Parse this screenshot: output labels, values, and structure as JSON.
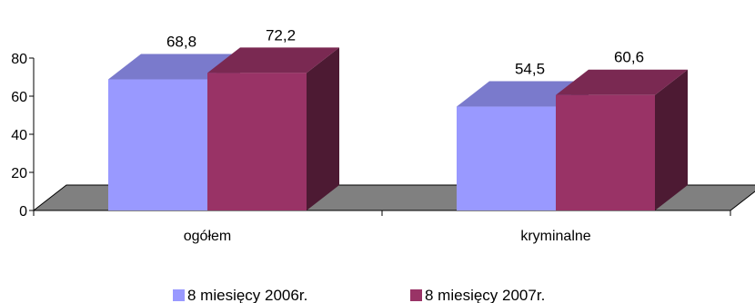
{
  "chart_data": {
    "type": "bar",
    "categories": [
      "ogółem",
      "kryminalne"
    ],
    "series": [
      {
        "name": "8 miesięcy 2006r.",
        "values": [
          68.8,
          54.5
        ],
        "color": "#9999ff"
      },
      {
        "name": "8 miesięcy 2007r.",
        "values": [
          72.2,
          60.6
        ],
        "color": "#993366"
      }
    ],
    "data_labels": [
      [
        "68,8",
        "54,5"
      ],
      [
        "72,2",
        "60,6"
      ]
    ],
    "ylim": [
      0,
      80
    ],
    "yticks": [
      0,
      20,
      40,
      60,
      80
    ],
    "grid": false,
    "three_d": true,
    "legend": "bottom"
  }
}
